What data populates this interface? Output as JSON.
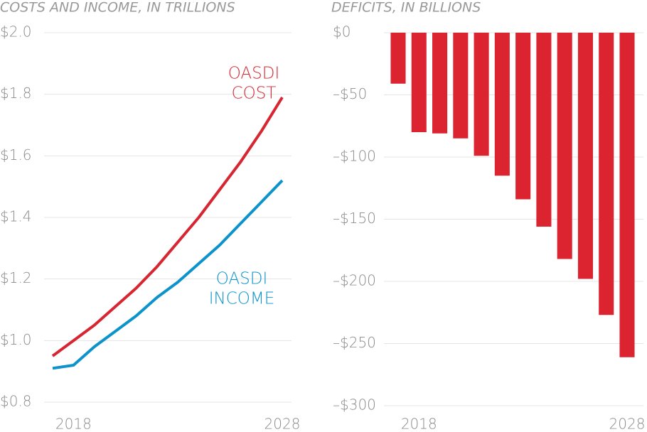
{
  "chart_data": [
    {
      "type": "line",
      "title": "COSTS AND INCOME, IN TRILLIONS",
      "x": [
        2017,
        2018,
        2019,
        2020,
        2021,
        2022,
        2023,
        2024,
        2025,
        2026,
        2027,
        2028
      ],
      "series": [
        {
          "color": "#d72631",
          "values": [
            0.95,
            1.0,
            1.05,
            1.11,
            1.17,
            1.24,
            1.32,
            1.4,
            1.49,
            1.58,
            1.68,
            1.79
          ]
        },
        {
          "color": "#0c93cc",
          "values": [
            0.91,
            0.92,
            0.98,
            1.03,
            1.08,
            1.14,
            1.19,
            1.25,
            1.31,
            1.38,
            1.45,
            1.52
          ]
        }
      ],
      "annotations": [
        {
          "lines": [
            "OASDI",
            "COST"
          ],
          "color": "#d72631"
        },
        {
          "lines": [
            "OASDI",
            "INCOME"
          ],
          "color": "#0c93cc"
        }
      ],
      "xlim": [
        2017,
        2028
      ],
      "xticks": [
        2018,
        2028
      ],
      "ylim": [
        0.8,
        2.0
      ],
      "yticks": [
        {
          "value": 0.8,
          "label": "$0.8"
        },
        {
          "value": 1.0,
          "label": "$1.0"
        },
        {
          "value": 1.2,
          "label": "$1.2"
        },
        {
          "value": 1.4,
          "label": "$1.4"
        },
        {
          "value": 1.6,
          "label": "$1.6"
        },
        {
          "value": 1.8,
          "label": "$1.8"
        },
        {
          "value": 2.0,
          "label": "$2.0"
        }
      ],
      "grid": true
    },
    {
      "type": "bar",
      "title": "DEFICITS, IN BILLIONS",
      "x": [
        2017,
        2018,
        2019,
        2020,
        2021,
        2022,
        2023,
        2024,
        2025,
        2026,
        2027,
        2028
      ],
      "values": [
        -41,
        -80,
        -81,
        -85,
        -99,
        -115,
        -134,
        -156,
        -182,
        -198,
        -227,
        -261
      ],
      "color": "#dc2431",
      "xlim": [
        2017,
        2028
      ],
      "xticks": [
        2018,
        2028
      ],
      "ylim": [
        -300,
        0
      ],
      "yticks": [
        {
          "value": 0,
          "label": "$0"
        },
        {
          "value": -50,
          "label": "–$50"
        },
        {
          "value": -100,
          "label": "–$100"
        },
        {
          "value": -150,
          "label": "–$150"
        },
        {
          "value": -200,
          "label": "–$200"
        },
        {
          "value": -250,
          "label": "–$250"
        },
        {
          "value": -300,
          "label": "–$300"
        }
      ],
      "grid": true
    }
  ]
}
